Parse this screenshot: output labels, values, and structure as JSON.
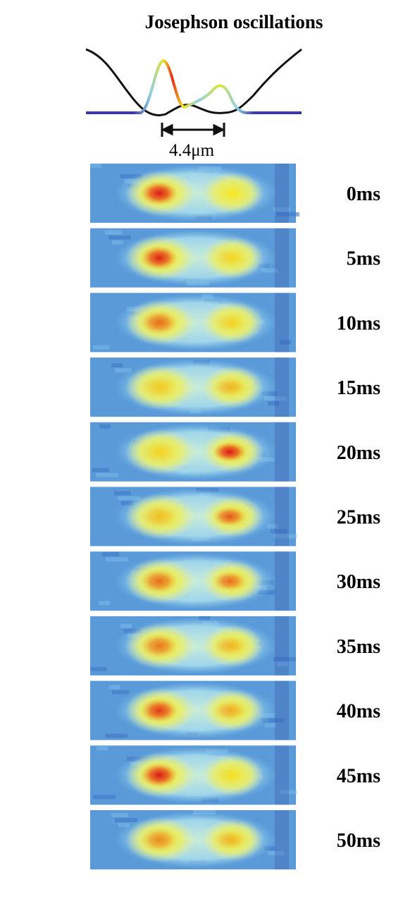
{
  "title": "Josephson oscillations",
  "scale_label": "4.4μm",
  "frames": [
    "0ms",
    "5ms",
    "10ms",
    "15ms",
    "20ms",
    "25ms",
    "30ms",
    "35ms",
    "40ms",
    "45ms",
    "50ms"
  ]
}
